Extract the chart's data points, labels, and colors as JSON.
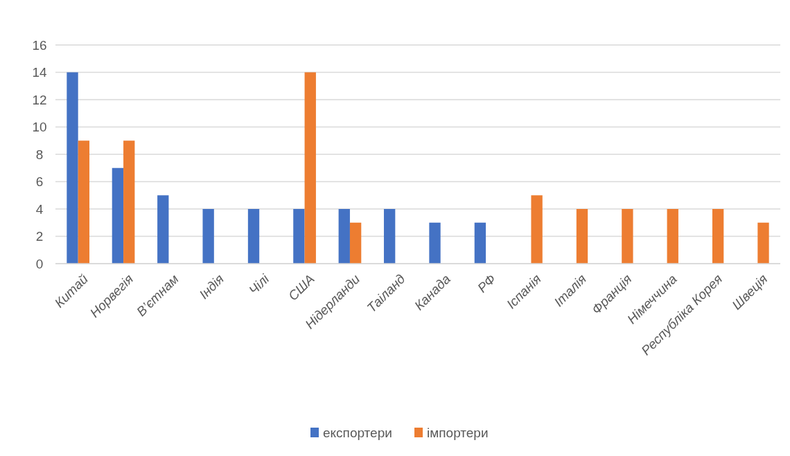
{
  "chart_data": {
    "type": "bar",
    "categories": [
      "Китай",
      "Норвегія",
      "В’єтнам",
      "Індія",
      "Чілі",
      "США",
      "Нідерланди",
      "Таіланд",
      "Канада",
      "РФ",
      "Іспанія",
      "Італія",
      "Франція",
      "Німеччина",
      "Республіка Корея",
      "Швеція"
    ],
    "series": [
      {
        "name": "експортери",
        "color": "#4472c4",
        "values": [
          14,
          7,
          5,
          4,
          4,
          4,
          4,
          4,
          3,
          3,
          null,
          null,
          null,
          null,
          null,
          null
        ]
      },
      {
        "name": "імпортери",
        "color": "#ed7d31",
        "values": [
          9,
          9,
          null,
          null,
          null,
          14,
          3,
          null,
          null,
          null,
          5,
          4,
          4,
          4,
          4,
          3
        ]
      }
    ],
    "ylim": [
      0,
      16
    ],
    "yticks": [
      0,
      2,
      4,
      6,
      8,
      10,
      12,
      14,
      16
    ],
    "grid": "y",
    "legend": "bottom"
  }
}
